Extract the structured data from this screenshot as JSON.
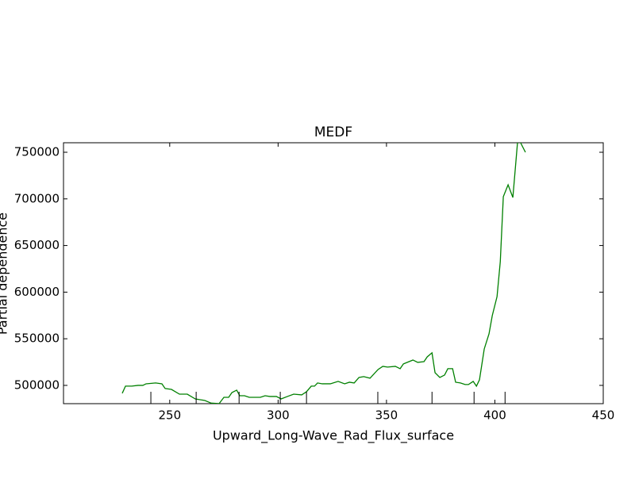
{
  "chart_data": {
    "type": "line",
    "title": "MEDF",
    "xlabel": "Upward_Long-Wave_Rad_Flux_surface",
    "ylabel": "Partial dependence",
    "x": [
      228.1,
      229.6,
      232.5,
      235.4,
      237.6,
      239.1,
      243.5,
      246.4,
      247.9,
      250.8,
      254.5,
      258.1,
      261.8,
      266.2,
      269.1,
      272.8,
      275.0,
      277.2,
      278.7,
      280.9,
      282.3,
      284.5,
      286.7,
      291.8,
      294.0,
      296.2,
      299.2,
      301.4,
      304.3,
      307.2,
      310.9,
      313.1,
      315.3,
      316.8,
      318.2,
      320.4,
      324.1,
      327.7,
      330.7,
      332.9,
      335.1,
      337.3,
      339.5,
      342.4,
      346.1,
      348.3,
      350.5,
      354.1,
      356.3,
      357.8,
      362.2,
      364.4,
      367.3,
      368.8,
      371.0,
      372.4,
      374.6,
      376.8,
      378.3,
      380.5,
      381.9,
      384.1,
      386.3,
      387.8,
      390.0,
      391.5,
      392.9,
      395.1,
      397.3,
      398.8,
      401.0,
      402.5,
      403.9,
      406.1,
      408.3,
      410.5,
      411.9,
      414.1
    ],
    "series": [
      {
        "color": "#008000",
        "values": [
          491500,
          499200,
          499200,
          500000,
          500000,
          501700,
          502600,
          501700,
          496600,
          495700,
          490600,
          490600,
          485500,
          483800,
          481000,
          480500,
          487200,
          487200,
          492300,
          494900,
          488900,
          488900,
          487200,
          487200,
          488900,
          488100,
          488100,
          485500,
          488100,
          490600,
          489800,
          493200,
          499200,
          499200,
          502600,
          501700,
          501700,
          504300,
          501700,
          503400,
          502600,
          508500,
          509400,
          507700,
          517000,
          520400,
          519600,
          520400,
          517900,
          523000,
          527200,
          524700,
          525500,
          530600,
          534900,
          513600,
          508500,
          511100,
          517900,
          517900,
          503400,
          502600,
          500900,
          500900,
          504300,
          499200,
          506000,
          539100,
          555300,
          574800,
          595200,
          632700,
          702400,
          715100,
          701500,
          761900,
          760000,
          750000
        ]
      }
    ],
    "deciles": [
      241.3,
      262.2,
      282.0,
      301.0,
      313.1,
      346.0,
      371.0,
      390.4,
      404.7
    ],
    "xlim": [
      201,
      450
    ],
    "xticks": [
      250,
      300,
      350,
      400,
      450
    ],
    "ylim": [
      480400,
      760200
    ],
    "yticks": [
      500000,
      550000,
      600000,
      650000,
      700000,
      750000
    ]
  }
}
